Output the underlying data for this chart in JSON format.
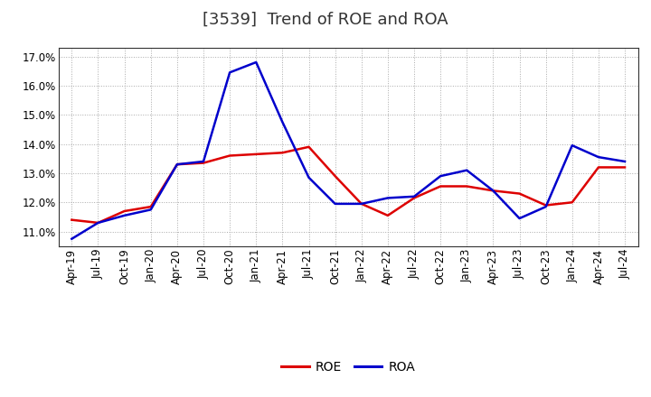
{
  "title": "[3539]  Trend of ROE and ROA",
  "x_labels": [
    "Apr-19",
    "Jul-19",
    "Oct-19",
    "Jan-20",
    "Apr-20",
    "Jul-20",
    "Oct-20",
    "Jan-21",
    "Apr-21",
    "Jul-21",
    "Oct-21",
    "Jan-22",
    "Apr-22",
    "Jul-22",
    "Oct-22",
    "Jan-23",
    "Apr-23",
    "Jul-23",
    "Oct-23",
    "Jan-24",
    "Apr-24",
    "Jul-24"
  ],
  "roe": [
    11.4,
    11.3,
    11.7,
    11.85,
    13.3,
    13.35,
    13.6,
    13.65,
    13.7,
    13.9,
    12.9,
    11.95,
    11.55,
    12.15,
    12.55,
    12.55,
    12.4,
    12.3,
    11.9,
    12.0,
    13.2,
    13.2
  ],
  "roa": [
    10.75,
    11.3,
    11.55,
    11.75,
    13.3,
    13.4,
    16.45,
    16.8,
    14.75,
    12.85,
    11.95,
    11.95,
    12.15,
    12.2,
    12.9,
    13.1,
    12.4,
    11.45,
    11.85,
    13.95,
    13.55,
    13.4
  ],
  "roe_color": "#dd0000",
  "roa_color": "#0000cc",
  "background_color": "#ffffff",
  "plot_bg_color": "#ffffff",
  "grid_color": "#aaaaaa",
  "ylim": [
    10.5,
    17.3
  ],
  "yticks": [
    11.0,
    12.0,
    13.0,
    14.0,
    15.0,
    16.0,
    17.0
  ],
  "title_fontsize": 13,
  "legend_fontsize": 10,
  "tick_fontsize": 8.5
}
